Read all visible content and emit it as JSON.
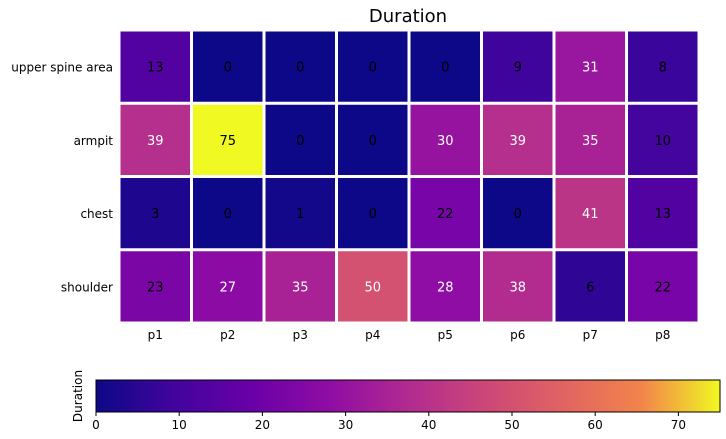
{
  "chart_data": {
    "type": "heatmap",
    "title": "Duration",
    "rows": [
      "upper spine area",
      "armpit",
      "chest",
      "shoulder"
    ],
    "columns": [
      "p1",
      "p2",
      "p3",
      "p4",
      "p5",
      "p6",
      "p7",
      "p8"
    ],
    "values": [
      [
        13,
        0,
        0,
        0,
        0,
        9,
        31,
        8
      ],
      [
        39,
        75,
        0,
        0,
        30,
        39,
        35,
        10
      ],
      [
        3,
        0,
        1,
        0,
        22,
        0,
        41,
        13
      ],
      [
        23,
        27,
        35,
        50,
        28,
        38,
        6,
        22
      ]
    ],
    "colormap": "plasma",
    "colorbar": {
      "label": "Duration",
      "range": [
        0,
        75
      ],
      "ticks": [
        0,
        10,
        20,
        30,
        40,
        50,
        60,
        70
      ],
      "orientation": "horizontal"
    },
    "label_colors": {
      "dark_cells": "#ffffff",
      "light_cells": "#000000"
    }
  }
}
